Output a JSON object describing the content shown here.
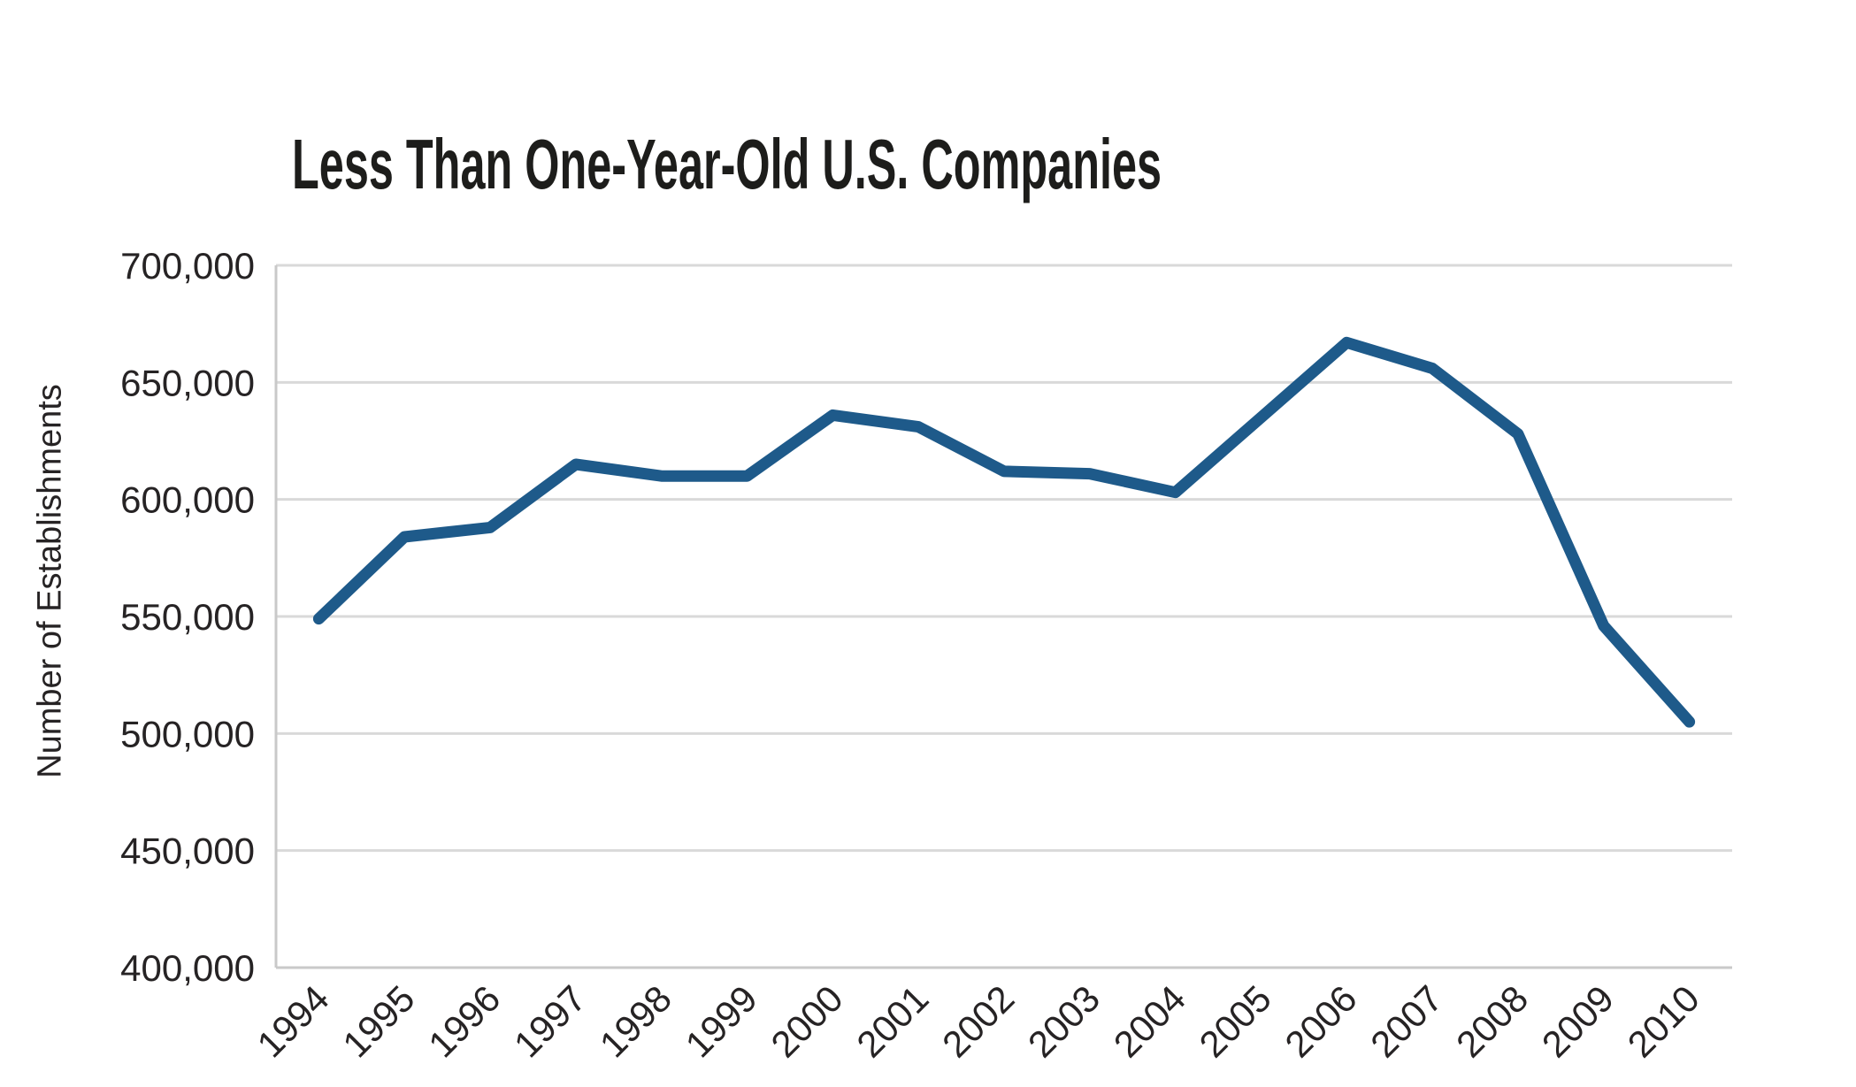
{
  "chart_data": {
    "type": "line",
    "title": "Less Than One-Year-Old U.S. Companies",
    "ylabel": "Number of Establishments",
    "xlabel": "",
    "categories": [
      "1994",
      "1995",
      "1996",
      "1997",
      "1998",
      "1999",
      "2000",
      "2001",
      "2002",
      "2003",
      "2004",
      "2005",
      "2006",
      "2007",
      "2008",
      "2009",
      "2010"
    ],
    "values": [
      549000,
      584000,
      588000,
      615000,
      610000,
      610000,
      636000,
      631000,
      612000,
      611000,
      603000,
      635000,
      667000,
      656000,
      628000,
      546000,
      505000
    ],
    "ylim": [
      400000,
      700000
    ],
    "ytick_step": 50000,
    "ytick_labels": [
      "400,000",
      "450,000",
      "500,000",
      "550,000",
      "600,000",
      "650,000",
      "700,000"
    ],
    "xtick_rotation_deg": 45,
    "grid": "horizontal",
    "legend": "none",
    "colors": {
      "line": "#1E5A8A",
      "gridline": "#D9D9D9",
      "axis": "#C9C9C9",
      "tick_text": "#262324",
      "title_text": "#1D1D1B",
      "background": "#FFFFFF"
    }
  }
}
